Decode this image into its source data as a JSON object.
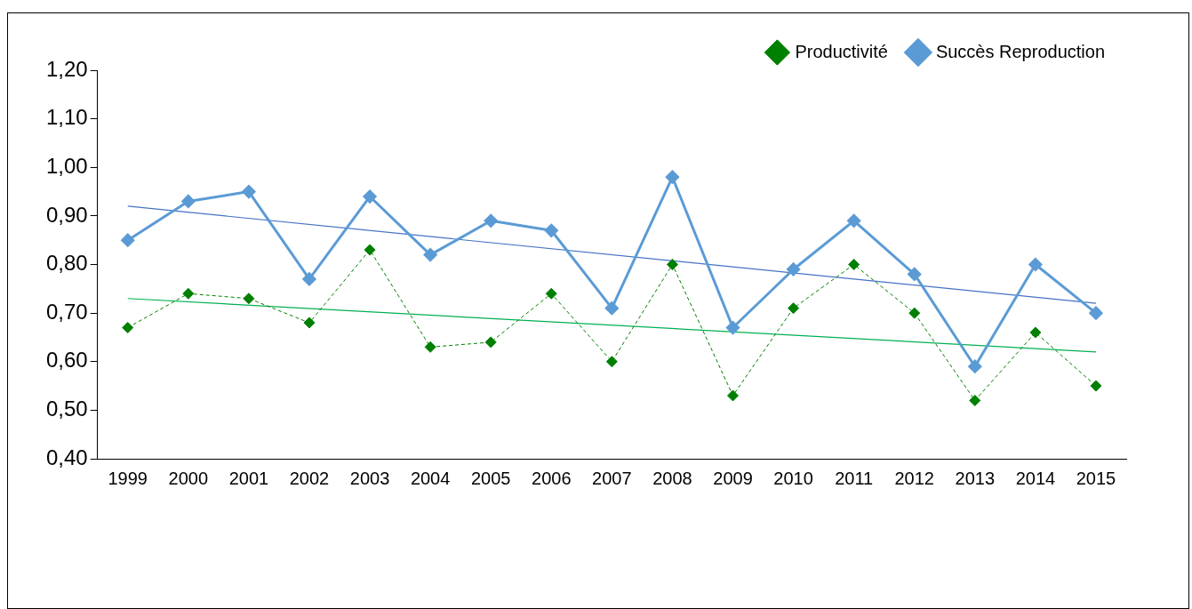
{
  "chart_data": {
    "type": "line",
    "categories": [
      "1999",
      "2000",
      "2001",
      "2002",
      "2003",
      "2004",
      "2005",
      "2006",
      "2007",
      "2008",
      "2009",
      "2010",
      "2011",
      "2012",
      "2013",
      "2014",
      "2015"
    ],
    "series": [
      {
        "name": "Productivité",
        "color": "#008000",
        "line_style": "dashed",
        "marker": "diamond",
        "values": [
          0.67,
          0.74,
          0.73,
          0.68,
          0.83,
          0.63,
          0.64,
          0.74,
          0.6,
          0.8,
          0.53,
          0.71,
          0.8,
          0.7,
          0.52,
          0.66,
          0.55
        ]
      },
      {
        "name": "Succès Reproduction",
        "color": "#5b9bd5",
        "line_style": "solid",
        "marker": "diamond",
        "values": [
          0.85,
          0.93,
          0.95,
          0.77,
          0.94,
          0.82,
          0.89,
          0.87,
          0.71,
          0.98,
          0.67,
          0.79,
          0.89,
          0.78,
          0.59,
          0.8,
          0.7
        ]
      },
      {
        "type": "line",
        "color": "#00b050",
        "marker": "none",
        "values": [
          0.73,
          null,
          null,
          null,
          null,
          null,
          null,
          null,
          null,
          null,
          null,
          null,
          null,
          null,
          null,
          null,
          0.62
        ]
      },
      {
        "type": "line",
        "color": "#4472c4",
        "marker": "none",
        "values": [
          0.92,
          null,
          null,
          null,
          null,
          null,
          null,
          null,
          null,
          null,
          null,
          null,
          null,
          null,
          null,
          null,
          0.72
        ]
      }
    ],
    "ylim": [
      0.4,
      1.2
    ],
    "yticks": [
      {
        "value": 0.4,
        "label": "0,40"
      },
      {
        "value": 0.5,
        "label": "0,50"
      },
      {
        "value": 0.6,
        "label": "0,60"
      },
      {
        "value": 0.7,
        "label": "0,70"
      },
      {
        "value": 0.8,
        "label": "0,80"
      },
      {
        "value": 0.9,
        "label": "0,90"
      },
      {
        "value": 1.0,
        "label": "1,00"
      },
      {
        "value": 1.1,
        "label": "1,10"
      },
      {
        "value": 1.2,
        "label": "1,20"
      }
    ],
    "grid": false,
    "legend": "top right"
  }
}
